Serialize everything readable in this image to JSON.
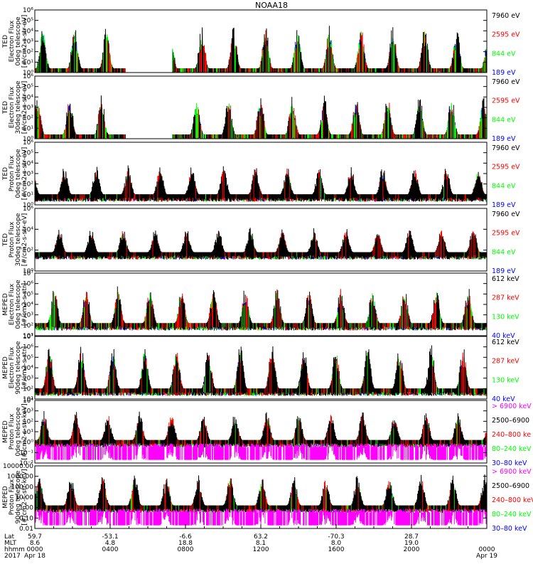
{
  "title": "NOAA18",
  "colors": {
    "black": "#000000",
    "red": "#ff0000",
    "green": "#00ff00",
    "blue": "#0000ff",
    "magenta": "#ff00ff"
  },
  "chart_data": [
    {
      "type": "line",
      "ylabel": [
        "TED",
        "Electron Flux",
        "0deg telescope",
        "[#/cm2-s-str-eV]"
      ],
      "yscale": "log",
      "yticks": [
        "10⁰",
        "10¹",
        "10²",
        "10³",
        "10⁴",
        "10⁵",
        "10⁶"
      ],
      "ylim_exp": [
        0,
        6
      ],
      "legend": [
        {
          "label": "7960 eV",
          "color": "black"
        },
        {
          "label": "2595 eV",
          "color": "red"
        },
        {
          "label": "844 eV",
          "color": "green"
        },
        {
          "label": "189 eV",
          "color": "blue"
        }
      ],
      "series_profile": {
        "baseline_exp": 0.4,
        "spike_max_exp": 4.6,
        "density": 0.55,
        "gap_hours": [
          4.8,
          7.3
        ]
      }
    },
    {
      "type": "line",
      "ylabel": [
        "TED",
        "Electron Flux",
        "30deg telescope",
        "[#/cm2-s-str-eV]"
      ],
      "yscale": "log",
      "yticks": [
        "10⁰",
        "10¹",
        "10²",
        "10³",
        "10⁴",
        "10⁵",
        "10⁶"
      ],
      "ylim_exp": [
        0,
        6
      ],
      "legend": [
        {
          "label": "7960 eV",
          "color": "black"
        },
        {
          "label": "2595 eV",
          "color": "red"
        },
        {
          "label": "844 eV",
          "color": "green"
        },
        {
          "label": "189 eV",
          "color": "blue"
        }
      ],
      "series_profile": {
        "baseline_exp": 0.4,
        "spike_max_exp": 4.2,
        "density": 0.5,
        "gap_hours": [
          4.8,
          7.3
        ]
      }
    },
    {
      "type": "line",
      "ylabel": [
        "TED",
        "Proton Flux",
        "0deg telescope",
        "[#/cm2-s-str-eV]"
      ],
      "yscale": "log",
      "yticks": [
        "10⁰",
        "10¹",
        "10²",
        "10³",
        "10⁴",
        "10⁵",
        "10⁶"
      ],
      "ylim_exp": [
        0,
        6
      ],
      "legend": [
        {
          "label": "7960 eV",
          "color": "black"
        },
        {
          "label": "2595 eV",
          "color": "red"
        },
        {
          "label": "844 eV",
          "color": "green"
        },
        {
          "label": "189 eV",
          "color": "blue"
        }
      ],
      "series_profile": {
        "baseline_exp": 1.0,
        "spike_max_exp": 3.8,
        "density": 0.9,
        "gap_hours": []
      }
    },
    {
      "type": "line",
      "ylabel": [
        "TED",
        "Proton Flux",
        "30deg telescope",
        "[#/cm2-s-str-eV]"
      ],
      "yscale": "log",
      "yticks": [
        "10⁰",
        "10²",
        "10⁴",
        "10⁶"
      ],
      "ylim_exp": [
        0,
        6
      ],
      "legend": [
        {
          "label": "7960 eV",
          "color": "black"
        },
        {
          "label": "2595 eV",
          "color": "red"
        },
        {
          "label": "844 eV",
          "color": "green"
        },
        {
          "label": "189 eV",
          "color": "blue"
        }
      ],
      "series_profile": {
        "baseline_exp": 1.8,
        "spike_max_exp": 4.2,
        "density": 0.9,
        "gap_hours": []
      }
    },
    {
      "type": "line",
      "ylabel": [
        "MEPED",
        "Electron Flux",
        "0deg telescope",
        "[#/cm2-s-str]"
      ],
      "yscale": "log",
      "yticks": [
        "10¹",
        "10²",
        "10³",
        "10⁴",
        "10⁵",
        "10⁶",
        "10⁷"
      ],
      "ylim_exp": [
        1,
        7
      ],
      "legend": [
        {
          "label": "612 keV",
          "color": "black"
        },
        {
          "label": "287 keV",
          "color": "red"
        },
        {
          "label": "130 keV",
          "color": "green"
        },
        {
          "label": "40 keV",
          "color": "blue"
        }
      ],
      "series_profile": {
        "baseline_exp": 2.2,
        "spike_max_exp": 5.8,
        "density": 0.6,
        "gap_hours": []
      }
    },
    {
      "type": "line",
      "ylabel": [
        "MEPED",
        "Electron Flux",
        "90deg telescope",
        "[#/cm2-s-str]"
      ],
      "yscale": "log",
      "yticks": [
        "10¹",
        "10²",
        "10³",
        "10⁴",
        "10⁵",
        "10⁶",
        "10⁷"
      ],
      "ylim_exp": [
        1,
        7
      ],
      "legend": [
        {
          "label": "612 keV",
          "color": "black"
        },
        {
          "label": "287 keV",
          "color": "red"
        },
        {
          "label": "130 keV",
          "color": "green"
        },
        {
          "label": "40 keV",
          "color": "blue"
        }
      ],
      "series_profile": {
        "baseline_exp": 2.0,
        "spike_max_exp": 6.2,
        "density": 0.75,
        "gap_hours": []
      }
    },
    {
      "type": "line",
      "ylabel": [
        "MEPED",
        "Proton Flux",
        "0deg telescope",
        "[#/cm2-s-str-keV]"
      ],
      "yscale": "log",
      "yticks": [
        "10⁻²",
        "10⁻¹",
        "10⁰",
        "10¹",
        "10²",
        "10³",
        "10⁴"
      ],
      "ylim_exp": [
        -2,
        4
      ],
      "legend": [
        {
          "label": "> 6900 keV",
          "color": "magenta"
        },
        {
          "label": "2500–6900",
          "color": "black"
        },
        {
          "label": "240–800 ke",
          "color": "red"
        },
        {
          "label": "80–240 keV",
          "color": "green"
        },
        {
          "label": "30–80 keV",
          "color": "blue"
        }
      ],
      "series_profile": {
        "baseline_exp": 0.2,
        "spike_max_exp": 3.0,
        "density": 0.8,
        "gap_hours": []
      }
    },
    {
      "type": "line",
      "ylabel": [
        "MEPED",
        "Proton Flux",
        "90deg telescope",
        "[#/cm2-s-str-keV]"
      ],
      "yscale": "log",
      "yticks": [
        "0.01",
        "0.10",
        "1.00",
        "10.00",
        "100.00",
        "1000.00",
        "10000.00"
      ],
      "ylim_exp": [
        -2,
        4
      ],
      "legend": [
        {
          "label": "> 6900 keV",
          "color": "magenta"
        },
        {
          "label": "2500–6900",
          "color": "black"
        },
        {
          "label": "240–800 keV",
          "color": "red"
        },
        {
          "label": "80–240 keV",
          "color": "green"
        },
        {
          "label": "30–80 keV",
          "color": "blue"
        }
      ],
      "series_profile": {
        "baseline_exp": 0.2,
        "spike_max_exp": 3.2,
        "density": 0.8,
        "gap_hours": []
      }
    }
  ],
  "time_axis": {
    "row_labels": [
      "Lat",
      "MLT",
      "hhmm",
      "2017"
    ],
    "columns": [
      {
        "hour": 0,
        "lat": "59.7",
        "mlt": "8.6",
        "hhmm": "0000",
        "date": "Apr 18"
      },
      {
        "hour": 4,
        "lat": "-53.1",
        "mlt": "4.8",
        "hhmm": "0400",
        "date": ""
      },
      {
        "hour": 8,
        "lat": "-6.6",
        "mlt": "18.8",
        "hhmm": "0800",
        "date": ""
      },
      {
        "hour": 12,
        "lat": "63.2",
        "mlt": "8.1",
        "hhmm": "1200",
        "date": ""
      },
      {
        "hour": 16,
        "lat": "-70.3",
        "mlt": "8.0",
        "hhmm": "1600",
        "date": ""
      },
      {
        "hour": 20,
        "lat": "28.7",
        "mlt": "19.0",
        "hhmm": "2000",
        "date": ""
      },
      {
        "hour": 24,
        "lat": "",
        "mlt": "",
        "hhmm": "0000",
        "date": "Apr 19"
      }
    ],
    "hours_total": 24
  }
}
